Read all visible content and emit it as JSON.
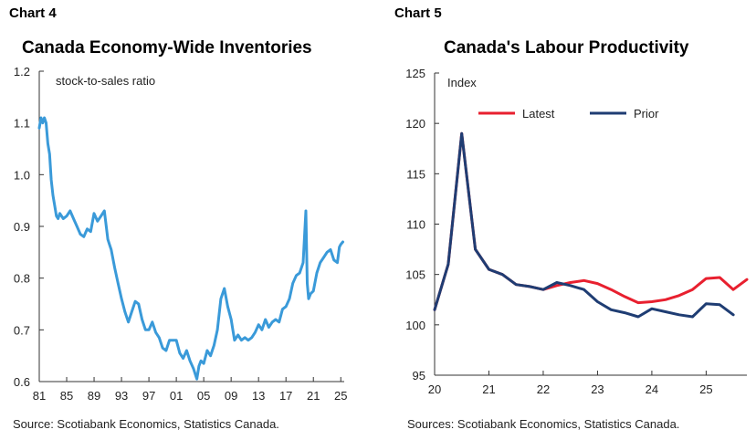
{
  "chart_data": [
    {
      "type": "line",
      "chart_label": "Chart 4",
      "title": "Canada Economy-Wide Inventories",
      "ylabel": "stock-to-sales ratio",
      "source": "Source: Scotiabank Economics, Statistics Canada.",
      "xlim": [
        1981,
        2025.5
      ],
      "ylim": [
        0.6,
        1.2
      ],
      "yticks": [
        0.6,
        0.7,
        0.8,
        0.9,
        1.0,
        1.1,
        1.2
      ],
      "ytick_labels": [
        "0.6",
        "0.7",
        "0.8",
        "0.9",
        "1.0",
        "1.1",
        "1.2"
      ],
      "xticks": [
        1981,
        1985,
        1989,
        1993,
        1997,
        2001,
        2005,
        2009,
        2013,
        2017,
        2021,
        2025
      ],
      "xtick_labels": [
        "81",
        "85",
        "89",
        "93",
        "97",
        "01",
        "05",
        "09",
        "13",
        "17",
        "21",
        "25"
      ],
      "grid": false,
      "colors": {
        "series": "#3a9ad9"
      },
      "series": [
        {
          "x": [
            1981.0,
            1981.25,
            1981.5,
            1981.75,
            1982.0,
            1982.25,
            1982.5,
            1982.75,
            1983.0,
            1983.25,
            1983.5,
            1983.75,
            1984.0,
            1984.5,
            1985.0,
            1985.5,
            1986.0,
            1986.5,
            1987.0,
            1987.5,
            1988.0,
            1988.5,
            1989.0,
            1989.5,
            1990.0,
            1990.5,
            1991.0,
            1991.25,
            1991.5,
            1992.0,
            1992.5,
            1993.0,
            1993.5,
            1994.0,
            1994.5,
            1995.0,
            1995.5,
            1996.0,
            1996.5,
            1997.0,
            1997.5,
            1998.0,
            1998.5,
            1999.0,
            1999.5,
            2000.0,
            2000.5,
            2001.0,
            2001.5,
            2002.0,
            2002.5,
            2003.0,
            2003.5,
            2004.0,
            2004.3,
            2004.6,
            2005.0,
            2005.5,
            2006.0,
            2006.5,
            2007.0,
            2007.5,
            2008.0,
            2008.5,
            2009.0,
            2009.25,
            2009.5,
            2010.0,
            2010.5,
            2011.0,
            2011.5,
            2012.0,
            2012.5,
            2013.0,
            2013.5,
            2014.0,
            2014.5,
            2015.0,
            2015.5,
            2016.0,
            2016.5,
            2017.0,
            2017.5,
            2018.0,
            2018.5,
            2019.0,
            2019.5,
            2019.9,
            2020.1,
            2020.3,
            2020.6,
            2021.0,
            2021.5,
            2022.0,
            2022.5,
            2023.0,
            2023.5,
            2024.0,
            2024.5,
            2024.8,
            2025.0,
            2025.3
          ],
          "y": [
            1.09,
            1.11,
            1.1,
            1.11,
            1.1,
            1.06,
            1.04,
            0.99,
            0.96,
            0.94,
            0.92,
            0.915,
            0.925,
            0.915,
            0.92,
            0.93,
            0.915,
            0.9,
            0.885,
            0.88,
            0.895,
            0.89,
            0.925,
            0.91,
            0.92,
            0.93,
            0.875,
            0.865,
            0.855,
            0.82,
            0.79,
            0.76,
            0.735,
            0.715,
            0.735,
            0.755,
            0.75,
            0.72,
            0.7,
            0.7,
            0.715,
            0.695,
            0.685,
            0.665,
            0.66,
            0.68,
            0.68,
            0.68,
            0.655,
            0.645,
            0.66,
            0.64,
            0.625,
            0.605,
            0.63,
            0.64,
            0.635,
            0.66,
            0.65,
            0.67,
            0.7,
            0.76,
            0.78,
            0.745,
            0.72,
            0.7,
            0.68,
            0.69,
            0.68,
            0.685,
            0.68,
            0.685,
            0.695,
            0.71,
            0.7,
            0.72,
            0.705,
            0.715,
            0.72,
            0.715,
            0.74,
            0.745,
            0.76,
            0.79,
            0.805,
            0.81,
            0.83,
            0.93,
            0.79,
            0.76,
            0.77,
            0.775,
            0.81,
            0.83,
            0.84,
            0.85,
            0.855,
            0.835,
            0.83,
            0.86,
            0.865,
            0.87
          ]
        }
      ]
    },
    {
      "type": "line",
      "chart_label": "Chart 5",
      "title": "Canada's Labour Productivity",
      "ylabel": "Index",
      "source": "Sources: Scotiabank Economics, Statistics Canada.",
      "xlim": [
        2020,
        2025.75
      ],
      "ylim": [
        95,
        125
      ],
      "yticks": [
        95,
        100,
        105,
        110,
        115,
        120,
        125
      ],
      "ytick_labels": [
        "95",
        "100",
        "105",
        "110",
        "115",
        "120",
        "125"
      ],
      "xticks": [
        2020,
        2021,
        2022,
        2023,
        2024,
        2025
      ],
      "xtick_labels": [
        "20",
        "21",
        "22",
        "23",
        "24",
        "25"
      ],
      "grid": false,
      "legend_position": "top",
      "series": [
        {
          "name": "Latest",
          "color": "#e8202f",
          "x": [
            2020.0,
            2020.25,
            2020.5,
            2020.75,
            2021.0,
            2021.25,
            2021.5,
            2021.75,
            2022.0,
            2022.25,
            2022.5,
            2022.75,
            2023.0,
            2023.25,
            2023.5,
            2023.75,
            2024.0,
            2024.25,
            2024.5,
            2024.75,
            2025.0,
            2025.25,
            2025.5,
            2025.75
          ],
          "y": [
            101.5,
            106.0,
            119.0,
            107.5,
            105.5,
            105.0,
            104.0,
            103.8,
            103.5,
            103.9,
            104.2,
            104.4,
            104.1,
            103.5,
            102.8,
            102.2,
            102.3,
            102.5,
            102.9,
            103.5,
            104.6,
            104.7,
            103.5,
            104.5
          ]
        },
        {
          "name": "Prior",
          "color": "#1f3d73",
          "x": [
            2020.0,
            2020.25,
            2020.5,
            2020.75,
            2021.0,
            2021.25,
            2021.5,
            2021.75,
            2022.0,
            2022.25,
            2022.5,
            2022.75,
            2023.0,
            2023.25,
            2023.5,
            2023.75,
            2024.0,
            2024.25,
            2024.5,
            2024.75,
            2025.0,
            2025.25,
            2025.5
          ],
          "y": [
            101.5,
            106.0,
            119.0,
            107.5,
            105.5,
            105.0,
            104.0,
            103.8,
            103.5,
            104.2,
            103.9,
            103.5,
            102.3,
            101.5,
            101.2,
            100.8,
            101.6,
            101.3,
            101.0,
            100.8,
            102.1,
            102.0,
            101.0
          ]
        }
      ]
    }
  ]
}
